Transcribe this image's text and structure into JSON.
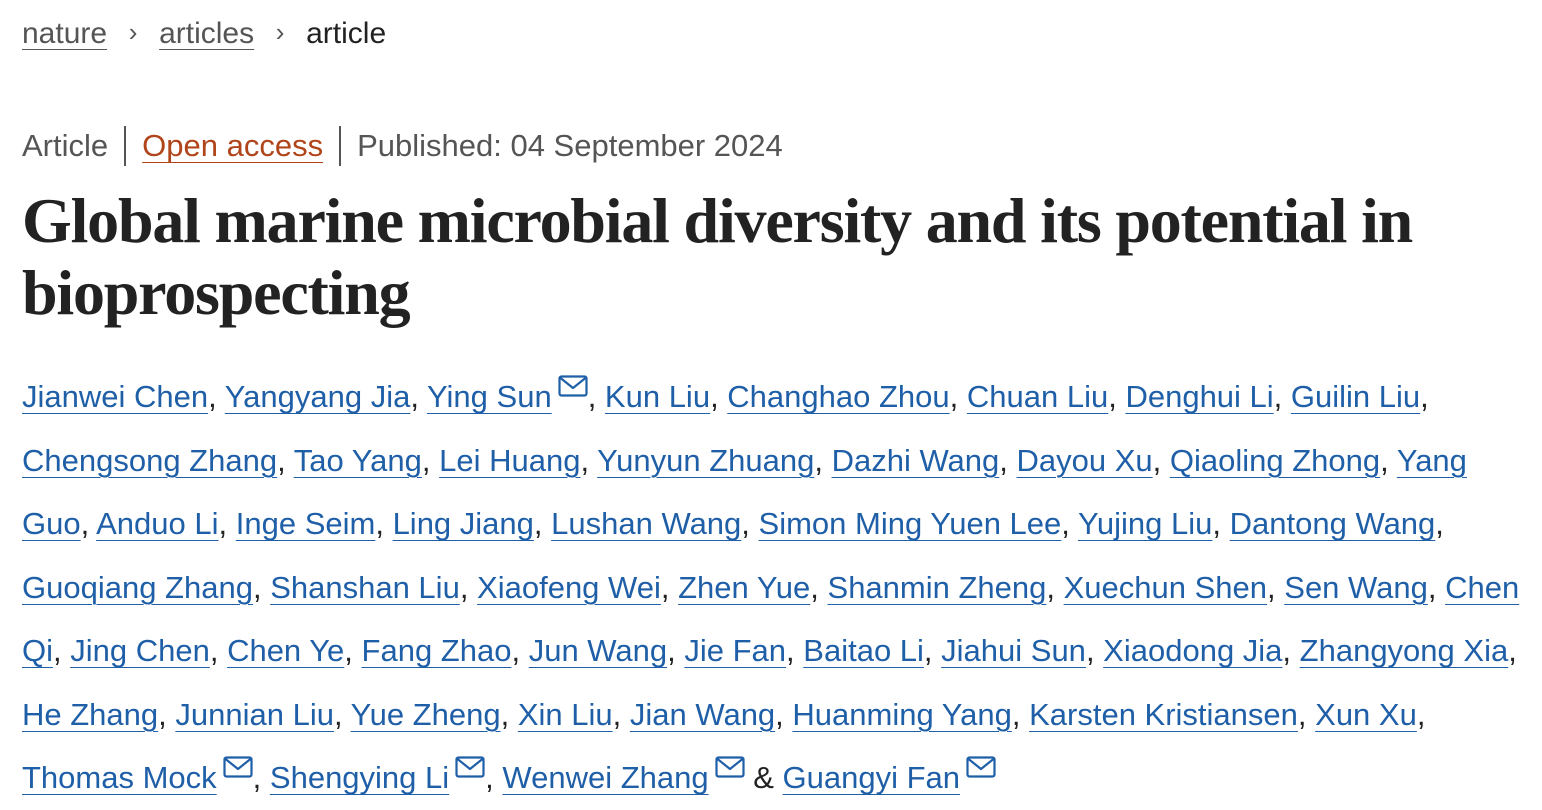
{
  "breadcrumb": {
    "items": [
      "nature",
      "articles"
    ],
    "current": "article",
    "separator": "›"
  },
  "meta": {
    "type": "Article",
    "access": "Open access",
    "published": "Published: 04 September 2024"
  },
  "title": "Global marine microbial diversity and its potential in bioprospecting",
  "authors": [
    {
      "name": "Jianwei Chen",
      "mail": false
    },
    {
      "name": "Yangyang Jia",
      "mail": false
    },
    {
      "name": "Ying Sun",
      "mail": true
    },
    {
      "name": "Kun Liu",
      "mail": false
    },
    {
      "name": "Changhao Zhou",
      "mail": false
    },
    {
      "name": "Chuan Liu",
      "mail": false
    },
    {
      "name": "Denghui Li",
      "mail": false
    },
    {
      "name": "Guilin Liu",
      "mail": false
    },
    {
      "name": "Chengsong Zhang",
      "mail": false
    },
    {
      "name": "Tao Yang",
      "mail": false
    },
    {
      "name": "Lei Huang",
      "mail": false
    },
    {
      "name": "Yunyun Zhuang",
      "mail": false
    },
    {
      "name": "Dazhi Wang",
      "mail": false
    },
    {
      "name": "Dayou Xu",
      "mail": false
    },
    {
      "name": "Qiaoling Zhong",
      "mail": false
    },
    {
      "name": "Yang Guo",
      "mail": false
    },
    {
      "name": "Anduo Li",
      "mail": false
    },
    {
      "name": "Inge Seim",
      "mail": false
    },
    {
      "name": "Ling Jiang",
      "mail": false
    },
    {
      "name": "Lushan Wang",
      "mail": false
    },
    {
      "name": "Simon Ming Yuen Lee",
      "mail": false
    },
    {
      "name": "Yujing Liu",
      "mail": false
    },
    {
      "name": "Dantong Wang",
      "mail": false
    },
    {
      "name": "Guoqiang Zhang",
      "mail": false
    },
    {
      "name": "Shanshan Liu",
      "mail": false
    },
    {
      "name": "Xiaofeng Wei",
      "mail": false
    },
    {
      "name": "Zhen Yue",
      "mail": false
    },
    {
      "name": "Shanmin Zheng",
      "mail": false
    },
    {
      "name": "Xuechun Shen",
      "mail": false
    },
    {
      "name": "Sen Wang",
      "mail": false
    },
    {
      "name": "Chen Qi",
      "mail": false
    },
    {
      "name": "Jing Chen",
      "mail": false
    },
    {
      "name": "Chen Ye",
      "mail": false
    },
    {
      "name": "Fang Zhao",
      "mail": false
    },
    {
      "name": "Jun Wang",
      "mail": false
    },
    {
      "name": "Jie Fan",
      "mail": false
    },
    {
      "name": "Baitao Li",
      "mail": false
    },
    {
      "name": "Jiahui Sun",
      "mail": false
    },
    {
      "name": "Xiaodong Jia",
      "mail": false
    },
    {
      "name": "Zhangyong Xia",
      "mail": false
    },
    {
      "name": "He Zhang",
      "mail": false
    },
    {
      "name": "Junnian Liu",
      "mail": false
    },
    {
      "name": "Yue Zheng",
      "mail": false
    },
    {
      "name": "Xin Liu",
      "mail": false
    },
    {
      "name": "Jian Wang",
      "mail": false
    },
    {
      "name": "Huanming Yang",
      "mail": false
    },
    {
      "name": "Karsten Kristiansen",
      "mail": false
    },
    {
      "name": "Xun Xu",
      "mail": false
    },
    {
      "name": "Thomas Mock",
      "mail": true
    },
    {
      "name": "Shengying Li",
      "mail": true
    },
    {
      "name": "Wenwei Zhang",
      "mail": true
    },
    {
      "name": "Guangyi Fan",
      "mail": true
    }
  ],
  "author_separator": ", ",
  "author_last_separator": " & ",
  "icons": {
    "mail": "mail-icon"
  },
  "colors": {
    "link": "#1f5fa8",
    "open_access": "#b0451a",
    "muted": "#555555",
    "text": "#222222"
  }
}
